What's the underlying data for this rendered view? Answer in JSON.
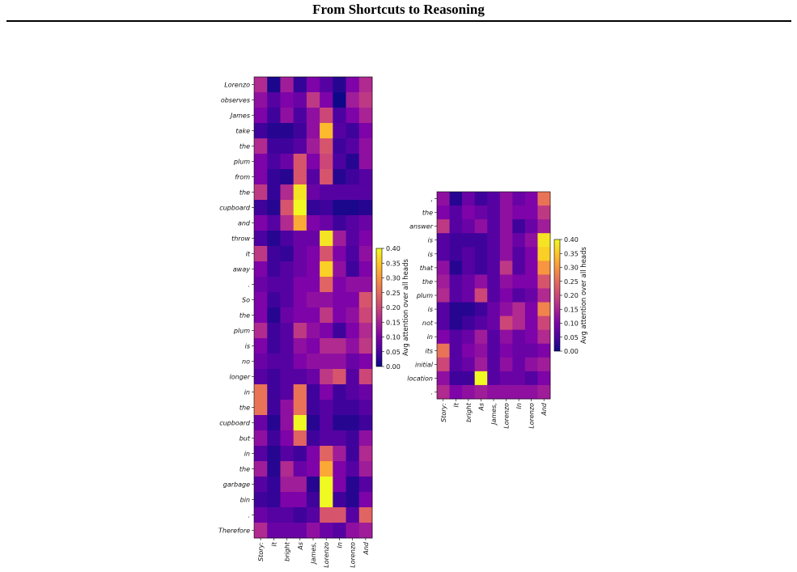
{
  "page": {
    "title": "From Shortcuts to Reasoning"
  },
  "chart_data": [
    {
      "type": "heatmap",
      "name": "attention-heatmap-story",
      "rows": [
        "Lorenzo",
        "observes",
        "James",
        "take",
        "the",
        "plum",
        "from",
        "the",
        "cupboard",
        "and",
        "throw",
        "it",
        "away",
        ".",
        "So",
        "the",
        "plum",
        "is",
        "no",
        "longer",
        "in",
        "the",
        "cupboard",
        "but",
        "in",
        "the",
        "garbage",
        "bin",
        ".",
        "Therefore"
      ],
      "columns": [
        "Story:",
        "It",
        "bright",
        "As",
        "James,",
        "Lorenzo",
        "In",
        "Lorenzo",
        "And"
      ],
      "values": [
        [
          0.16,
          0.01,
          0.14,
          0.03,
          0.1,
          0.06,
          0.02,
          0.1,
          0.16
        ],
        [
          0.12,
          0.06,
          0.1,
          0.08,
          0.18,
          0.1,
          0.0,
          0.14,
          0.18
        ],
        [
          0.1,
          0.04,
          0.12,
          0.05,
          0.12,
          0.2,
          0.05,
          0.1,
          0.15
        ],
        [
          0.04,
          0.02,
          0.02,
          0.04,
          0.12,
          0.34,
          0.06,
          0.04,
          0.1
        ],
        [
          0.16,
          0.04,
          0.04,
          0.06,
          0.14,
          0.22,
          0.04,
          0.06,
          0.12
        ],
        [
          0.1,
          0.05,
          0.08,
          0.22,
          0.1,
          0.2,
          0.05,
          0.02,
          0.12
        ],
        [
          0.1,
          0.03,
          0.02,
          0.22,
          0.06,
          0.22,
          0.02,
          0.04,
          0.06
        ],
        [
          0.18,
          0.03,
          0.16,
          0.38,
          0.08,
          0.06,
          0.06,
          0.06,
          0.06
        ],
        [
          0.04,
          0.02,
          0.22,
          0.4,
          0.03,
          0.04,
          0.01,
          0.01,
          0.02
        ],
        [
          0.1,
          0.06,
          0.16,
          0.32,
          0.1,
          0.08,
          0.04,
          0.06,
          0.08
        ],
        [
          0.05,
          0.02,
          0.05,
          0.08,
          0.08,
          0.38,
          0.14,
          0.06,
          0.1
        ],
        [
          0.18,
          0.04,
          0.03,
          0.08,
          0.1,
          0.22,
          0.1,
          0.05,
          0.12
        ],
        [
          0.1,
          0.04,
          0.06,
          0.08,
          0.1,
          0.36,
          0.12,
          0.04,
          0.1
        ],
        [
          0.08,
          0.06,
          0.06,
          0.1,
          0.1,
          0.24,
          0.1,
          0.12,
          0.12
        ],
        [
          0.1,
          0.04,
          0.06,
          0.1,
          0.12,
          0.12,
          0.1,
          0.1,
          0.22
        ],
        [
          0.1,
          0.02,
          0.08,
          0.1,
          0.1,
          0.18,
          0.1,
          0.12,
          0.2
        ],
        [
          0.16,
          0.04,
          0.06,
          0.18,
          0.12,
          0.1,
          0.04,
          0.1,
          0.16
        ],
        [
          0.1,
          0.04,
          0.06,
          0.12,
          0.1,
          0.16,
          0.16,
          0.12,
          0.18
        ],
        [
          0.08,
          0.06,
          0.06,
          0.1,
          0.12,
          0.12,
          0.12,
          0.08,
          0.1
        ],
        [
          0.06,
          0.04,
          0.06,
          0.06,
          0.08,
          0.18,
          0.22,
          0.06,
          0.2
        ],
        [
          0.26,
          0.04,
          0.06,
          0.26,
          0.04,
          0.1,
          0.04,
          0.06,
          0.08
        ],
        [
          0.26,
          0.04,
          0.12,
          0.26,
          0.04,
          0.06,
          0.04,
          0.04,
          0.06
        ],
        [
          0.08,
          0.02,
          0.12,
          0.4,
          0.02,
          0.06,
          0.02,
          0.02,
          0.04
        ],
        [
          0.12,
          0.04,
          0.1,
          0.24,
          0.04,
          0.06,
          0.06,
          0.04,
          0.12
        ],
        [
          0.06,
          0.02,
          0.06,
          0.04,
          0.1,
          0.24,
          0.14,
          0.04,
          0.16
        ],
        [
          0.14,
          0.02,
          0.16,
          0.08,
          0.1,
          0.32,
          0.1,
          0.06,
          0.14
        ],
        [
          0.06,
          0.03,
          0.14,
          0.14,
          0.02,
          0.4,
          0.1,
          0.02,
          0.06
        ],
        [
          0.04,
          0.03,
          0.1,
          0.1,
          0.04,
          0.4,
          0.04,
          0.02,
          0.1
        ],
        [
          0.08,
          0.06,
          0.06,
          0.04,
          0.06,
          0.22,
          0.22,
          0.06,
          0.24
        ],
        [
          0.16,
          0.08,
          0.08,
          0.08,
          0.12,
          0.08,
          0.06,
          0.12,
          0.14
        ]
      ],
      "colorbar": {
        "label": "Avg attention over all heads",
        "range": [
          0,
          0.4
        ],
        "ticks": [
          "0.00",
          "0.05",
          "0.10",
          "0.15",
          "0.20",
          "0.25",
          "0.30",
          "0.35",
          "0.40"
        ]
      },
      "colormap": "plasma"
    },
    {
      "type": "heatmap",
      "name": "attention-heatmap-answer",
      "rows": [
        ",",
        "the",
        "answer",
        "is",
        "is",
        "that",
        "the",
        "plum",
        "is",
        "not",
        "in",
        "its",
        "initial",
        "location",
        "."
      ],
      "columns": [
        "Story:",
        "It",
        "bright",
        "As",
        "James,",
        "Lorenzo",
        "In",
        "Lorenzo",
        "And"
      ],
      "values": [
        [
          0.12,
          0.02,
          0.08,
          0.04,
          0.06,
          0.12,
          0.08,
          0.1,
          0.26
        ],
        [
          0.1,
          0.06,
          0.1,
          0.08,
          0.06,
          0.12,
          0.1,
          0.1,
          0.18
        ],
        [
          0.18,
          0.06,
          0.08,
          0.12,
          0.06,
          0.12,
          0.04,
          0.08,
          0.14
        ],
        [
          0.06,
          0.04,
          0.04,
          0.04,
          0.06,
          0.12,
          0.08,
          0.12,
          0.38
        ],
        [
          0.06,
          0.04,
          0.06,
          0.04,
          0.06,
          0.12,
          0.06,
          0.1,
          0.36
        ],
        [
          0.12,
          0.02,
          0.06,
          0.04,
          0.06,
          0.18,
          0.06,
          0.1,
          0.3
        ],
        [
          0.14,
          0.06,
          0.08,
          0.12,
          0.06,
          0.12,
          0.1,
          0.1,
          0.22
        ],
        [
          0.16,
          0.06,
          0.08,
          0.2,
          0.06,
          0.1,
          0.06,
          0.08,
          0.16
        ],
        [
          0.06,
          0.02,
          0.02,
          0.04,
          0.08,
          0.12,
          0.16,
          0.1,
          0.28
        ],
        [
          0.06,
          0.02,
          0.04,
          0.06,
          0.08,
          0.2,
          0.16,
          0.1,
          0.2
        ],
        [
          0.1,
          0.06,
          0.08,
          0.14,
          0.06,
          0.12,
          0.08,
          0.1,
          0.16
        ],
        [
          0.26,
          0.06,
          0.1,
          0.12,
          0.06,
          0.1,
          0.08,
          0.08,
          0.1
        ],
        [
          0.2,
          0.06,
          0.08,
          0.14,
          0.06,
          0.12,
          0.08,
          0.12,
          0.14
        ],
        [
          0.12,
          0.04,
          0.04,
          0.4,
          0.06,
          0.08,
          0.08,
          0.06,
          0.1
        ],
        [
          0.16,
          0.1,
          0.12,
          0.14,
          0.12,
          0.12,
          0.12,
          0.12,
          0.14
        ]
      ],
      "colorbar": {
        "label": "Avg attention over all heads",
        "range": [
          0,
          0.4
        ],
        "ticks": [
          "0.00",
          "0.05",
          "0.10",
          "0.15",
          "0.20",
          "0.25",
          "0.30",
          "0.35",
          "0.40"
        ]
      },
      "colormap": "plasma"
    }
  ]
}
